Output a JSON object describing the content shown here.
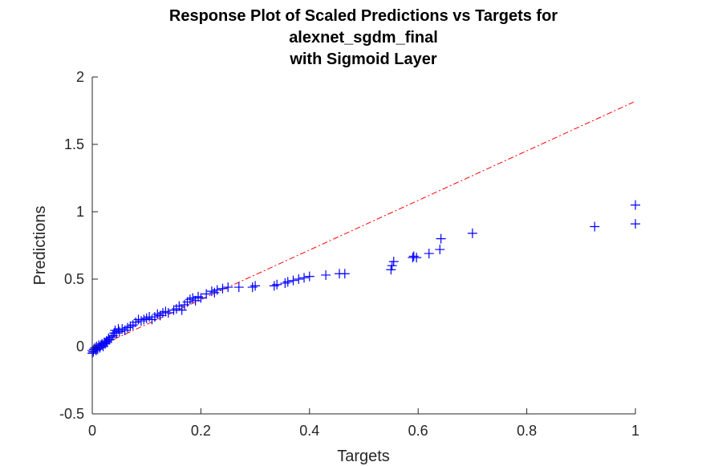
{
  "chart_data": {
    "type": "scatter",
    "title": [
      "Response Plot of Scaled Predictions vs Targets for",
      "alexnet_sgdm_final",
      "with Sigmoid Layer"
    ],
    "xlabel": "Targets",
    "ylabel": "Predictions",
    "xlim": [
      0,
      1
    ],
    "ylim": [
      -0.5,
      2
    ],
    "xticks": [
      0,
      0.2,
      0.4,
      0.6,
      0.8,
      1
    ],
    "yticks": [
      -0.5,
      0,
      0.5,
      1,
      1.5,
      2
    ],
    "xtick_labels": [
      "0",
      "0.2",
      "0.4",
      "0.6",
      "0.8",
      "1"
    ],
    "ytick_labels": [
      "-0.5",
      "0",
      "0.5",
      "1",
      "1.5",
      "2"
    ],
    "grid": false,
    "marker_color": "#0000ff",
    "line_color": "#ff0000",
    "axis_color": "#262626",
    "fit_line": {
      "x": [
        0,
        1
      ],
      "y": [
        -0.02,
        1.82
      ],
      "style": "dash-dot"
    },
    "points": [
      [
        0.0,
        -0.05
      ],
      [
        0.0,
        -0.03
      ],
      [
        0.002,
        -0.04
      ],
      [
        0.003,
        -0.02
      ],
      [
        0.005,
        -0.01
      ],
      [
        0.007,
        -0.03
      ],
      [
        0.008,
        0.0
      ],
      [
        0.01,
        -0.02
      ],
      [
        0.012,
        0.01
      ],
      [
        0.014,
        -0.01
      ],
      [
        0.016,
        0.01
      ],
      [
        0.018,
        0.02
      ],
      [
        0.02,
        0.0
      ],
      [
        0.022,
        0.03
      ],
      [
        0.024,
        0.02
      ],
      [
        0.026,
        0.04
      ],
      [
        0.028,
        0.03
      ],
      [
        0.03,
        0.06
      ],
      [
        0.032,
        0.05
      ],
      [
        0.035,
        0.07
      ],
      [
        0.038,
        0.08
      ],
      [
        0.04,
        0.1
      ],
      [
        0.042,
        0.12
      ],
      [
        0.045,
        0.1
      ],
      [
        0.048,
        0.13
      ],
      [
        0.05,
        0.11
      ],
      [
        0.055,
        0.13
      ],
      [
        0.06,
        0.12
      ],
      [
        0.065,
        0.14
      ],
      [
        0.07,
        0.15
      ],
      [
        0.075,
        0.16
      ],
      [
        0.08,
        0.18
      ],
      [
        0.085,
        0.2
      ],
      [
        0.09,
        0.19
      ],
      [
        0.095,
        0.2
      ],
      [
        0.1,
        0.21
      ],
      [
        0.105,
        0.22
      ],
      [
        0.11,
        0.2
      ],
      [
        0.115,
        0.22
      ],
      [
        0.12,
        0.24
      ],
      [
        0.125,
        0.23
      ],
      [
        0.13,
        0.25
      ],
      [
        0.135,
        0.26
      ],
      [
        0.14,
        0.25
      ],
      [
        0.15,
        0.27
      ],
      [
        0.155,
        0.28
      ],
      [
        0.16,
        0.3
      ],
      [
        0.165,
        0.27
      ],
      [
        0.17,
        0.31
      ],
      [
        0.175,
        0.33
      ],
      [
        0.18,
        0.35
      ],
      [
        0.185,
        0.36
      ],
      [
        0.19,
        0.34
      ],
      [
        0.195,
        0.37
      ],
      [
        0.2,
        0.36
      ],
      [
        0.21,
        0.39
      ],
      [
        0.22,
        0.41
      ],
      [
        0.225,
        0.4
      ],
      [
        0.23,
        0.42
      ],
      [
        0.24,
        0.43
      ],
      [
        0.25,
        0.44
      ],
      [
        0.27,
        0.44
      ],
      [
        0.295,
        0.44
      ],
      [
        0.3,
        0.45
      ],
      [
        0.335,
        0.45
      ],
      [
        0.34,
        0.46
      ],
      [
        0.355,
        0.47
      ],
      [
        0.36,
        0.48
      ],
      [
        0.37,
        0.49
      ],
      [
        0.38,
        0.5
      ],
      [
        0.39,
        0.51
      ],
      [
        0.4,
        0.52
      ],
      [
        0.43,
        0.53
      ],
      [
        0.455,
        0.54
      ],
      [
        0.465,
        0.54
      ],
      [
        0.55,
        0.57
      ],
      [
        0.552,
        0.6
      ],
      [
        0.555,
        0.63
      ],
      [
        0.59,
        0.66
      ],
      [
        0.592,
        0.67
      ],
      [
        0.597,
        0.66
      ],
      [
        0.62,
        0.69
      ],
      [
        0.64,
        0.72
      ],
      [
        0.642,
        0.8
      ],
      [
        0.7,
        0.84
      ],
      [
        0.925,
        0.89
      ],
      [
        1.0,
        0.91
      ],
      [
        1.0,
        1.05
      ]
    ]
  }
}
